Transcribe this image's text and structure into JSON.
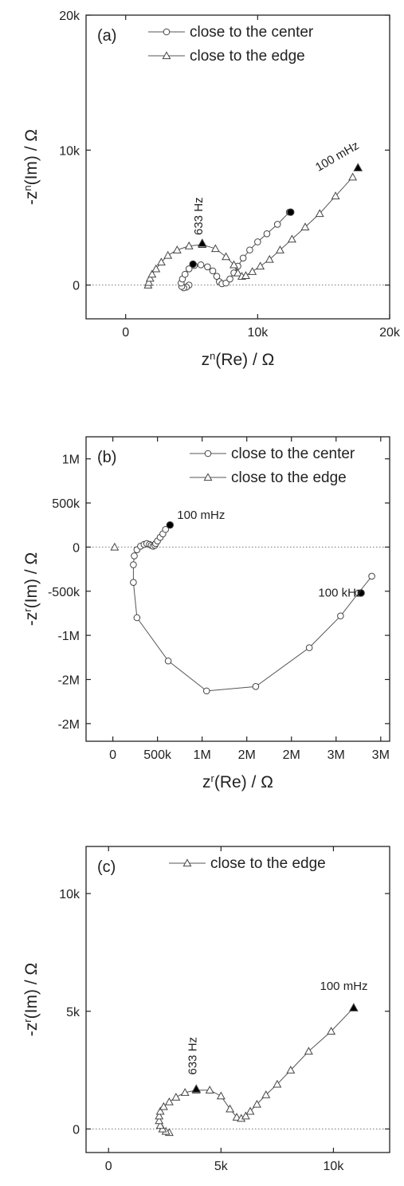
{
  "chart_data": [
    {
      "type": "scatter",
      "panel_label": "(a)",
      "xlabel": [
        "z",
        "n",
        "(Re) / Ω"
      ],
      "ylabel": [
        "-z",
        "n",
        "(Im) / Ω"
      ],
      "xlim": [
        -3000,
        20000
      ],
      "ylim": [
        -2500,
        20000
      ],
      "xticks": [
        {
          "v": 0,
          "label": "0"
        },
        {
          "v": 10000,
          "label": "10k"
        },
        {
          "v": 20000,
          "label": "20k"
        }
      ],
      "yticks": [
        {
          "v": 0,
          "label": "0"
        },
        {
          "v": 10000,
          "label": "10k"
        },
        {
          "v": 20000,
          "label": "20k"
        }
      ],
      "legend": {
        "position": "top-right",
        "entries": [
          {
            "label": "close to the center",
            "marker": "circle"
          },
          {
            "label": "close to the edge",
            "marker": "triangle"
          }
        ]
      },
      "series": [
        {
          "name": "close to the center",
          "marker": "circle",
          "x": [
            4800,
            4600,
            4400,
            4250,
            4200,
            4300,
            4500,
            4800,
            5200,
            5700,
            6200,
            6600,
            6900,
            7100,
            7300,
            7600,
            7900,
            8200,
            8500,
            8900,
            9400,
            10000,
            10700,
            11500,
            12400
          ],
          "y": [
            0,
            -150,
            -200,
            -100,
            150,
            450,
            800,
            1200,
            1450,
            1500,
            1350,
            1050,
            650,
            250,
            100,
            150,
            450,
            900,
            1400,
            2000,
            2600,
            3200,
            3800,
            4500,
            5400
          ]
        },
        {
          "name": "close to the edge",
          "marker": "triangle",
          "x": [
            1700,
            1750,
            1850,
            2000,
            2300,
            2700,
            3200,
            3900,
            4800,
            5800,
            6800,
            7600,
            8200,
            8500,
            8800,
            9100,
            9600,
            10200,
            10900,
            11700,
            12600,
            13600,
            14700,
            15900,
            17200
          ],
          "y": [
            0,
            200,
            500,
            800,
            1200,
            1700,
            2200,
            2600,
            2900,
            3000,
            2700,
            2100,
            1500,
            900,
            650,
            700,
            1000,
            1400,
            1900,
            2600,
            3400,
            4300,
            5300,
            6600,
            8000
          ]
        }
      ],
      "highlights": [
        {
          "x": 5100,
          "y": 1550,
          "marker": "circle"
        },
        {
          "x": 12500,
          "y": 5400,
          "marker": "circle"
        },
        {
          "x": 5800,
          "y": 3100,
          "marker": "triangle"
        },
        {
          "x": 17600,
          "y": 8700,
          "marker": "triangle"
        }
      ],
      "annotations": [
        {
          "text": "633 Hz",
          "x": 5800,
          "y": 3700,
          "rotate": -90
        },
        {
          "text": "100 mHz",
          "x": 14600,
          "y": 8400,
          "rotate": -30
        }
      ]
    },
    {
      "type": "scatter",
      "panel_label": "(b)",
      "xlabel": [
        "z",
        "r",
        "(Re) / Ω"
      ],
      "ylabel": [
        "-z",
        "r",
        "(Im) / Ω"
      ],
      "xlim": [
        -300000,
        3100000
      ],
      "ylim": [
        -2200000,
        1250000
      ],
      "xticks": [
        {
          "v": 0,
          "label": "0"
        },
        {
          "v": 500000,
          "label": "500k"
        },
        {
          "v": 1000000,
          "label": "1M"
        },
        {
          "v": 1500000,
          "label": "2M"
        },
        {
          "v": 2000000,
          "label": "2M"
        },
        {
          "v": 2500000,
          "label": "3M"
        },
        {
          "v": 3000000,
          "label": "3M"
        }
      ],
      "yticks": [
        {
          "v": 1000000,
          "label": "1M"
        },
        {
          "v": 500000,
          "label": "500k"
        },
        {
          "v": 0,
          "label": "0"
        },
        {
          "v": -500000,
          "label": "-500k"
        },
        {
          "v": -1000000,
          "label": "-1M"
        },
        {
          "v": -1500000,
          "label": "-2M"
        },
        {
          "v": -2000000,
          "label": "-2M"
        }
      ],
      "legend": {
        "position": "top-right",
        "entries": [
          {
            "label": "close to the center",
            "marker": "circle"
          },
          {
            "label": "close to the edge",
            "marker": "triangle"
          }
        ]
      },
      "series": [
        {
          "name": "close to the center",
          "marker": "circle",
          "x": [
            2900000,
            2750000,
            2550000,
            2200000,
            1600000,
            1050000,
            620000,
            270000,
            230000,
            230000,
            240000,
            270000,
            310000,
            350000,
            380000,
            410000,
            430000,
            450000,
            470000,
            480000,
            500000,
            530000,
            560000,
            590000,
            640000
          ],
          "y": [
            -330000,
            -520000,
            -780000,
            -1140000,
            -1580000,
            -1630000,
            -1290000,
            -800000,
            -400000,
            -200000,
            -100000,
            -30000,
            10000,
            30000,
            40000,
            30000,
            20000,
            10000,
            20000,
            40000,
            70000,
            110000,
            150000,
            200000,
            250000
          ]
        },
        {
          "name": "close to the edge",
          "marker": "triangle",
          "x": [
            20000
          ],
          "y": [
            0
          ]
        }
      ],
      "highlights": [
        {
          "x": 640000,
          "y": 250000,
          "marker": "circle"
        },
        {
          "x": 2780000,
          "y": -520000,
          "marker": "circle"
        }
      ],
      "annotations": [
        {
          "text": "100 mHz",
          "x": 720000,
          "y": 320000,
          "rotate": 0
        },
        {
          "text": "100 kHz",
          "x": 2300000,
          "y": -560000,
          "rotate": 0
        }
      ]
    },
    {
      "type": "scatter",
      "panel_label": "(c)",
      "xlabel": [
        "z",
        "r",
        "(Re)/ Ω"
      ],
      "ylabel": [
        "-z",
        "r",
        "(Im) / Ω"
      ],
      "xlim": [
        -1000,
        12500
      ],
      "ylim": [
        -1000,
        12000
      ],
      "xticks": [
        {
          "v": 0,
          "label": "0"
        },
        {
          "v": 5000,
          "label": "5k"
        },
        {
          "v": 10000,
          "label": "10k"
        }
      ],
      "yticks": [
        {
          "v": 0,
          "label": "0"
        },
        {
          "v": 5000,
          "label": "5k"
        },
        {
          "v": 10000,
          "label": "10k"
        }
      ],
      "legend": {
        "position": "top-right",
        "entries": [
          {
            "label": "close to the edge",
            "marker": "triangle"
          }
        ]
      },
      "series": [
        {
          "name": "close to the edge",
          "marker": "triangle",
          "x": [
            2700,
            2550,
            2400,
            2300,
            2250,
            2250,
            2300,
            2450,
            2700,
            3000,
            3400,
            3900,
            4500,
            5000,
            5400,
            5700,
            5900,
            6100,
            6300,
            6600,
            7000,
            7500,
            8100,
            8900,
            9900,
            10900
          ],
          "y": [
            -150,
            -100,
            0,
            150,
            350,
            550,
            750,
            950,
            1150,
            1350,
            1550,
            1650,
            1650,
            1400,
            850,
            500,
            450,
            550,
            750,
            1050,
            1450,
            1900,
            2500,
            3300,
            4150,
            5150
          ]
        }
      ],
      "highlights": [
        {
          "x": 3900,
          "y": 1700,
          "marker": "triangle"
        },
        {
          "x": 10900,
          "y": 5150,
          "marker": "triangle"
        }
      ],
      "annotations": [
        {
          "text": "633 Hz",
          "x": 3900,
          "y": 2300,
          "rotate": -90
        },
        {
          "text": "100 mHz",
          "x": 9400,
          "y": 5900,
          "rotate": 0
        }
      ]
    }
  ]
}
